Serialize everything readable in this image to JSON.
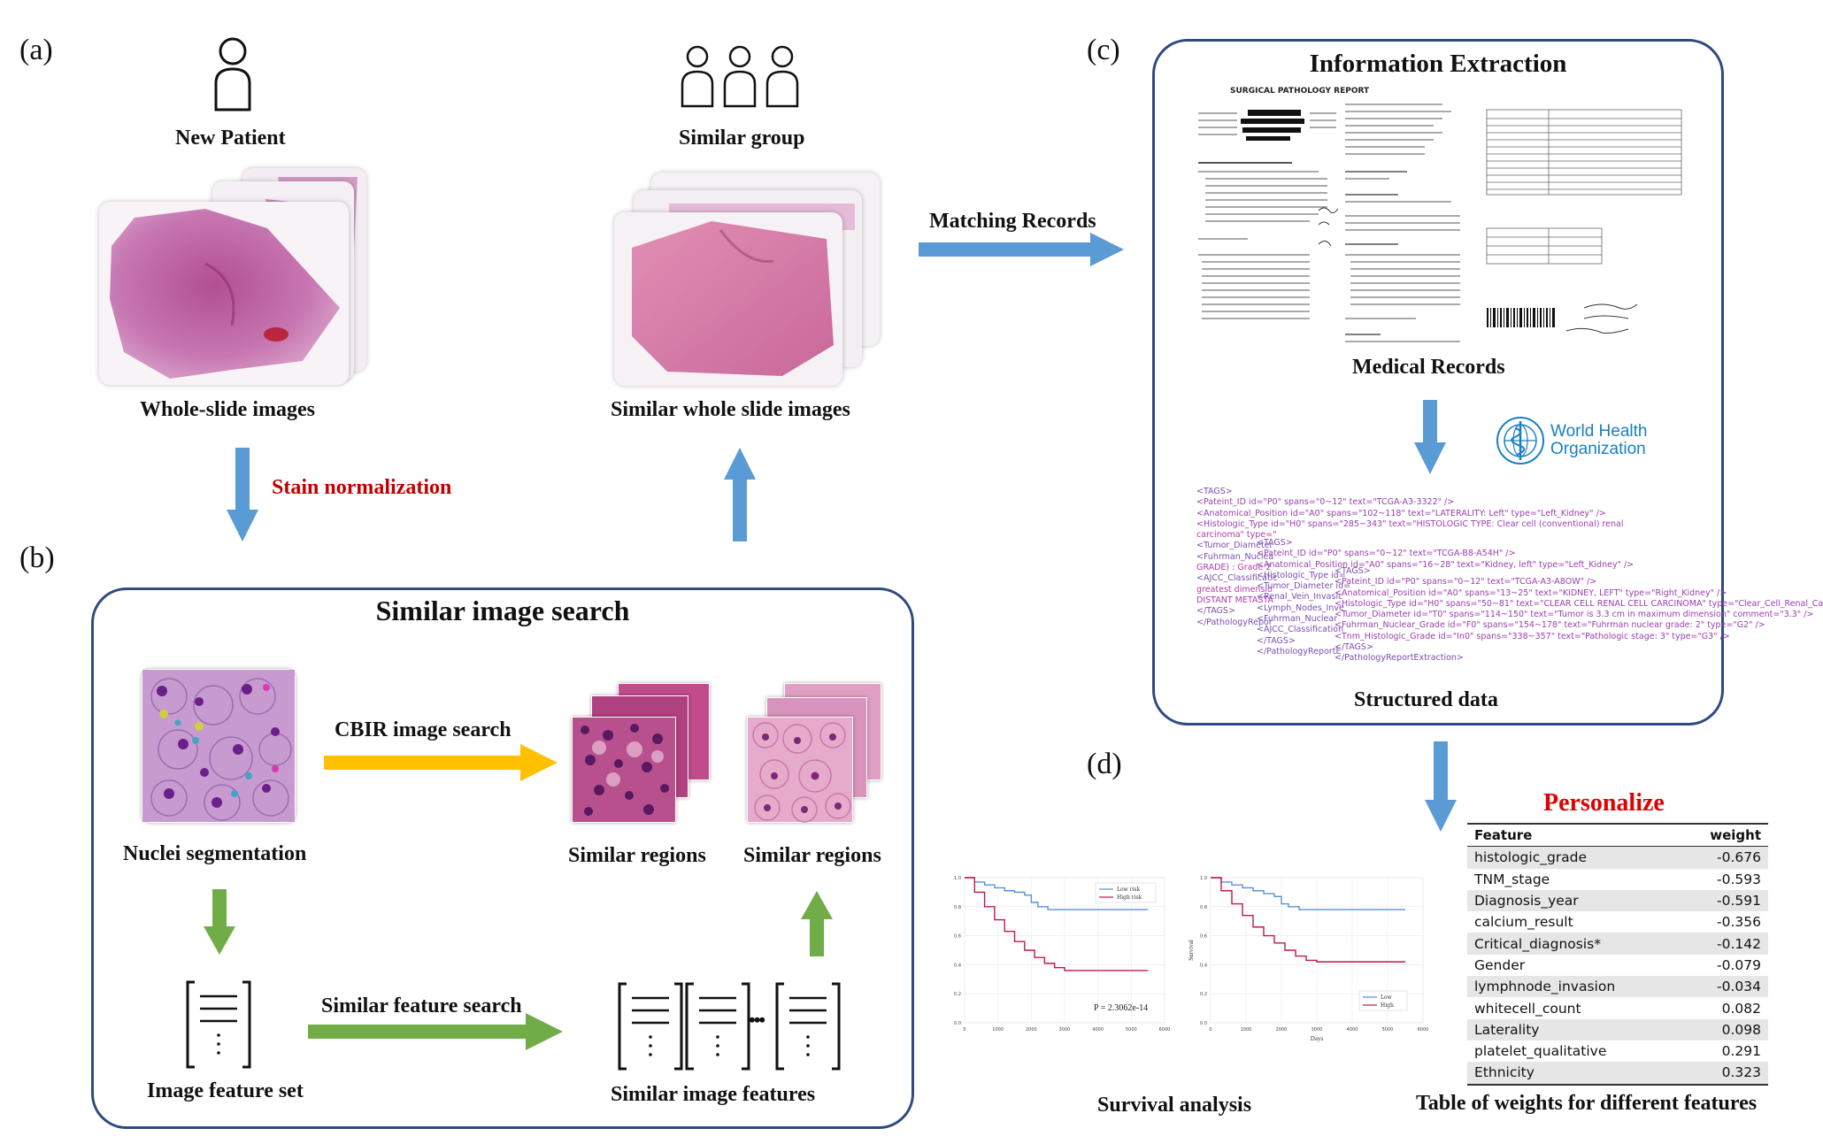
{
  "panels": {
    "a": "(a)",
    "b": "(b)",
    "c": "(c)",
    "d": "(d)"
  },
  "panel_a": {
    "new_patient": "New Patient",
    "similar_group": "Similar group",
    "whole_slide_images": "Whole-slide images",
    "similar_whole_slide_images": "Similar whole slide images",
    "stain_normalization": "Stain normalization",
    "matching_records": "Matching Records"
  },
  "panel_b": {
    "title": "Similar image search",
    "cbir": "CBIR image search",
    "nuclei_segmentation": "Nuclei segmentation",
    "similar_regions_1": "Similar regions",
    "similar_regions_2": "Similar regions",
    "image_feature_set": "Image feature set",
    "similar_feature_search": "Similar feature search",
    "similar_image_features": "Similar image features",
    "ellipsis": "•••"
  },
  "panel_c": {
    "title": "Information Extraction",
    "report_heading": "SURGICAL PATHOLOGY REPORT",
    "medical_records": "Medical Records",
    "who_line1": "World Health",
    "who_line2": "Organization",
    "structured_data": "Structured data",
    "xml_block1": [
      "<TAGS>",
      "<Pateint_ID id=\"P0\" spans=\"0~12\" text=\"TCGA-A3-3322\" />",
      "<Anatomical_Position id=\"A0\" spans=\"102~118\" text=\"LATERALITY: Left\" type=\"Left_Kidney\" />",
      "<Histologic_Type id=\"H0\" spans=\"285~343\" text=\"HISTOLOGIC TYPE: Clear cell (conventional) renal",
      "carcinoma\" type=\"",
      "<Tumor_Diameter",
      "<Fuhrman_Nuclea",
      "GRADE) : Grade 2",
      "<AJCC_Classificatic",
      "greatest dimensio",
      "DISTANT METASTA",
      "</TAGS>",
      "</PathologyRepor"
    ],
    "xml_block2": [
      "<TAGS>",
      "<Pateint_ID id=\"P0\" spans=\"0~12\" text=\"TCGA-B8-A54H\" />",
      "<Anatomical_Position id=\"A0\" spans=\"16~28\" text=\"Kidney,   left\" type=\"Left_Kidney\" />",
      "<Histologic_Type id=",
      "<Tumor_Diameter id=",
      "<Renal_Vein_Invasic",
      "<Lymph_Nodes_Inve",
      "<Fuhrman_Nuclear",
      "<AJCC_Classification",
      "</TAGS>",
      "</PathologyReportE"
    ],
    "xml_block3": [
      "<TAGS>",
      "<Pateint_ID id=\"P0\" spans=\"0~12\" text=\"TCGA-A3-A8OW\" />",
      "<Anatomical_Position id=\"A0\" spans=\"13~25\" text=\"KIDNEY, LEFT\" type=\"Right_Kidney\" />",
      "<Histologic_Type id=\"H0\" spans=\"50~81\" text=\"CLEAR CELL RENAL CELL CARCINOMA\" type=\"Clear_Cell_Renal_Ca",
      "<Tumor_Diameter id=\"T0\" spans=\"114~150\" text=\"Tumor is 3.3 cm in maximum dimension\" comment=\"3.3\" />",
      "<Fuhrman_Nuclear_Grade id=\"F0\" spans=\"154~178\" text=\"Fuhrman nuclear grade: 2\" type=\"G2\" />",
      "<Tnm_Histologic_Grade id=\"In0\" spans=\"338~357\" text=\"Pathologic stage: 3\" type=\"G3\" />",
      "</TAGS>",
      "</PathologyReportExtraction>"
    ]
  },
  "panel_d": {
    "personalize": "Personalize",
    "survival_analysis": "Survival analysis",
    "table_caption": "Table of weights for different features",
    "table_header": {
      "feature": "Feature",
      "weight": "weight"
    },
    "table_rows": [
      {
        "feature": "histologic_grade",
        "weight": "-0.676"
      },
      {
        "feature": "TNM_stage",
        "weight": "-0.593"
      },
      {
        "feature": "Diagnosis_year",
        "weight": "-0.591"
      },
      {
        "feature": "calcium_result",
        "weight": "-0.356"
      },
      {
        "feature": "Critical_diagnosis*",
        "weight": "-0.142"
      },
      {
        "feature": "Gender",
        "weight": "-0.079"
      },
      {
        "feature": "lymphnode_invasion",
        "weight": "-0.034"
      },
      {
        "feature": "whitecell_count",
        "weight": "0.082"
      },
      {
        "feature": "Laterality",
        "weight": "0.098"
      },
      {
        "feature": "platelet_qualitative",
        "weight": "0.291"
      },
      {
        "feature": "Ethnicity",
        "weight": "0.323"
      }
    ],
    "plot1": {
      "legend_low": "Low risk",
      "legend_high": "High risk",
      "pvalue": "P = 2.3062e-14",
      "yticks": [
        "1.0",
        "0.8",
        "0.6",
        "0.4",
        "0.2",
        "0.0"
      ],
      "xticks": [
        "0",
        "1000",
        "2000",
        "3000",
        "4000",
        "5000",
        "6000"
      ]
    },
    "plot2": {
      "legend_low": "Low",
      "legend_high": "High",
      "ylabel": "Survival",
      "xlabel": "Days",
      "yticks": [
        "1.0",
        "0.8",
        "0.6",
        "0.4",
        "0.2",
        "0.0"
      ],
      "xticks": [
        "0",
        "1000",
        "2000",
        "3000",
        "4000",
        "5000",
        "6000"
      ]
    }
  },
  "colors": {
    "blue_arrow": "#5b9bd5",
    "green_arrow": "#70ad47",
    "yellow_arrow": "#ffc000",
    "stain_red": "#c00000",
    "personalize_red": "#e00000",
    "box_border": "#2f4a7e",
    "low_risk_line": "#5b8fd6",
    "high_risk_line": "#c0184a"
  },
  "chart_data": [
    {
      "type": "line",
      "xlim": [
        0,
        6000
      ],
      "ylim": [
        0,
        1
      ],
      "series": [
        {
          "name": "Low risk",
          "x": [
            0,
            300,
            600,
            900,
            1200,
            1500,
            1800,
            2000,
            2200,
            2500,
            3000,
            4000,
            5500
          ],
          "y": [
            1.0,
            0.97,
            0.95,
            0.93,
            0.91,
            0.9,
            0.88,
            0.83,
            0.8,
            0.78,
            0.78,
            0.78,
            0.78
          ]
        },
        {
          "name": "High risk",
          "x": [
            0,
            300,
            600,
            900,
            1200,
            1500,
            1800,
            2100,
            2400,
            2700,
            3000,
            4000,
            5500
          ],
          "y": [
            1.0,
            0.9,
            0.8,
            0.71,
            0.63,
            0.56,
            0.5,
            0.45,
            0.41,
            0.38,
            0.36,
            0.36,
            0.36
          ]
        }
      ]
    },
    {
      "type": "line",
      "xlim": [
        0,
        6000
      ],
      "ylim": [
        0,
        1
      ],
      "xlabel": "Days",
      "ylabel": "Survival",
      "series": [
        {
          "name": "Low",
          "x": [
            0,
            300,
            600,
            900,
            1200,
            1500,
            1800,
            2000,
            2200,
            2500,
            3000,
            4000,
            5500
          ],
          "y": [
            1.0,
            0.97,
            0.95,
            0.93,
            0.91,
            0.89,
            0.87,
            0.82,
            0.8,
            0.78,
            0.78,
            0.78,
            0.78
          ]
        },
        {
          "name": "High",
          "x": [
            0,
            300,
            600,
            900,
            1200,
            1500,
            1800,
            2100,
            2400,
            2700,
            3000,
            4000,
            5500
          ],
          "y": [
            1.0,
            0.91,
            0.82,
            0.74,
            0.66,
            0.6,
            0.55,
            0.5,
            0.46,
            0.43,
            0.42,
            0.42,
            0.42
          ]
        }
      ]
    }
  ]
}
